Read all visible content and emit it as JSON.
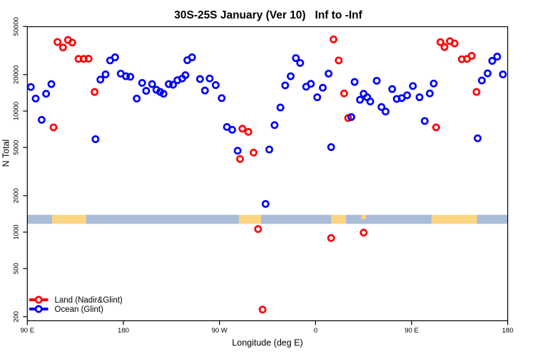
{
  "chart_data": {
    "type": "scatter",
    "title": "30S-25S January (Ver 10)   Inf to -Inf",
    "xlabel": "Longitude (deg E)",
    "ylabel": "N Total",
    "y_scale": "log",
    "ylim": [
      185,
      50000
    ],
    "x_axis": {
      "unit": "degrees eastward from 90E (axis wraps around globe 1.25 times)",
      "range_deg": [
        0,
        450
      ],
      "ticks": [
        {
          "deg": 0,
          "label": "90 E"
        },
        {
          "deg": 90,
          "label": "180"
        },
        {
          "deg": 180,
          "label": "90 W"
        },
        {
          "deg": 270,
          "label": "0"
        },
        {
          "deg": 360,
          "label": "90 E"
        },
        {
          "deg": 450,
          "label": "180"
        }
      ]
    },
    "y_axis": {
      "ticks": [
        200,
        500,
        1000,
        2000,
        5000,
        10000,
        20000,
        50000
      ]
    },
    "series": [
      {
        "name": "Land (Nadir&Glint)",
        "color": "#ff0000",
        "points": [
          [
            24.5,
            7330
          ],
          [
            28.3,
            37200
          ],
          [
            33.4,
            33500
          ],
          [
            38.1,
            38700
          ],
          [
            42.1,
            36800
          ],
          [
            47.9,
            27000
          ],
          [
            52.8,
            27000
          ],
          [
            57.4,
            27100
          ],
          [
            63.0,
            14400
          ],
          [
            199.3,
            4020
          ],
          [
            201.5,
            7160
          ],
          [
            207.1,
            6730
          ],
          [
            212.0,
            4540
          ],
          [
            216.2,
            1060
          ],
          [
            220.4,
            229
          ],
          [
            284.6,
            894
          ],
          [
            286.8,
            39100
          ],
          [
            291.7,
            26200
          ],
          [
            296.8,
            14000
          ],
          [
            300.6,
            8770
          ],
          [
            315.1,
            991
          ],
          [
            383.0,
            7330
          ],
          [
            387.0,
            37100
          ],
          [
            390.8,
            33800
          ],
          [
            395.9,
            37800
          ],
          [
            400.3,
            36200
          ],
          [
            407.0,
            26800
          ],
          [
            411.9,
            27000
          ],
          [
            416.3,
            28600
          ],
          [
            420.8,
            14400
          ]
        ]
      },
      {
        "name": "Ocean (Glint)",
        "color": "#0000ff",
        "points": [
          [
            3.3,
            15800
          ],
          [
            7.8,
            12700
          ],
          [
            13.4,
            8460
          ],
          [
            17.6,
            13900
          ],
          [
            22.5,
            16700
          ],
          [
            63.9,
            5860
          ],
          [
            68.4,
            18200
          ],
          [
            73.3,
            20100
          ],
          [
            77.5,
            26200
          ],
          [
            82.2,
            27800
          ],
          [
            87.5,
            20400
          ],
          [
            92.4,
            19400
          ],
          [
            96.5,
            19200
          ],
          [
            102.5,
            12700
          ],
          [
            107.5,
            17100
          ],
          [
            111.3,
            14700
          ],
          [
            116.9,
            16700
          ],
          [
            120.9,
            15000
          ],
          [
            124.5,
            14400
          ],
          [
            127.6,
            13900
          ],
          [
            132.5,
            16700
          ],
          [
            136.5,
            16500
          ],
          [
            140.7,
            18000
          ],
          [
            145.1,
            18600
          ],
          [
            148.1,
            19800
          ],
          [
            149.9,
            26300
          ],
          [
            154.3,
            27800
          ],
          [
            161.8,
            18400
          ],
          [
            166.4,
            14800
          ],
          [
            170.8,
            18600
          ],
          [
            176.5,
            16400
          ],
          [
            182.1,
            12800
          ],
          [
            187.0,
            7390
          ],
          [
            191.9,
            7000
          ],
          [
            197.0,
            4700
          ],
          [
            223.2,
            1710
          ],
          [
            226.7,
            4810
          ],
          [
            231.6,
            7660
          ],
          [
            237.1,
            10700
          ],
          [
            241.6,
            16300
          ],
          [
            246.7,
            19400
          ],
          [
            251.6,
            27400
          ],
          [
            255.6,
            25000
          ],
          [
            261.2,
            15900
          ],
          [
            265.6,
            16800
          ],
          [
            271.6,
            13000
          ],
          [
            276.8,
            15600
          ],
          [
            282.2,
            20400
          ],
          [
            284.6,
            5040
          ],
          [
            303.5,
            8930
          ],
          [
            306.6,
            17400
          ],
          [
            311.7,
            12400
          ],
          [
            315.1,
            13900
          ],
          [
            318.4,
            13000
          ],
          [
            321.3,
            12000
          ],
          [
            327.3,
            17800
          ],
          [
            331.8,
            10800
          ],
          [
            335.6,
            9900
          ],
          [
            341.8,
            15200
          ],
          [
            346.1,
            12600
          ],
          [
            350.7,
            12800
          ],
          [
            355.8,
            13500
          ],
          [
            361.2,
            16100
          ],
          [
            367.4,
            13000
          ],
          [
            372.3,
            8280
          ],
          [
            377.0,
            14000
          ],
          [
            380.7,
            16900
          ],
          [
            421.9,
            5960
          ],
          [
            425.8,
            17900
          ],
          [
            431.2,
            20500
          ],
          [
            435.5,
            26000
          ],
          [
            440.2,
            28200
          ],
          [
            445.5,
            20100
          ]
        ]
      }
    ],
    "map_band": {
      "description": "horizontal land/ocean strip along longitude",
      "n_top": 1390,
      "n_bottom": 1170,
      "colors": {
        "ocean": "#a9bcd8",
        "land": "#fbd581"
      },
      "segments": [
        {
          "from_deg": 0,
          "to_deg": 23.2,
          "type": "ocean"
        },
        {
          "from_deg": 23.2,
          "to_deg": 55.2,
          "type": "land"
        },
        {
          "from_deg": 55.2,
          "to_deg": 198.2,
          "type": "ocean"
        },
        {
          "from_deg": 198.2,
          "to_deg": 218.9,
          "type": "land"
        },
        {
          "from_deg": 218.9,
          "to_deg": 284.9,
          "type": "ocean"
        },
        {
          "from_deg": 284.9,
          "to_deg": 298.6,
          "type": "land"
        },
        {
          "from_deg": 298.6,
          "to_deg": 378.8,
          "type": "ocean"
        },
        {
          "from_deg": 312.9,
          "to_deg": 317.3,
          "type": "land",
          "half": true
        },
        {
          "from_deg": 378.8,
          "to_deg": 421.2,
          "type": "land"
        },
        {
          "from_deg": 421.2,
          "to_deg": 450,
          "type": "ocean"
        }
      ]
    },
    "legend_position": "bottom-left"
  }
}
